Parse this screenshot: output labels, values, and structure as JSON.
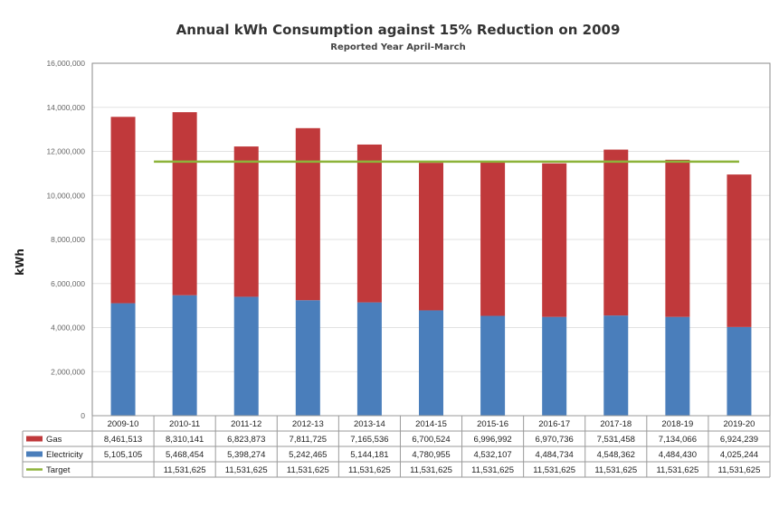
{
  "chart_data": {
    "type": "bar",
    "stacked": true,
    "title": "Annual kWh Consumption against 15% Reduction on 2009",
    "subtitle": "Reported Year April-March",
    "ylabel": "kWh",
    "xlabel": "",
    "ylim": [
      0,
      16000000
    ],
    "yticks": [
      0,
      2000000,
      4000000,
      6000000,
      8000000,
      10000000,
      12000000,
      14000000,
      16000000
    ],
    "ytick_labels": [
      "0",
      "2,000,000",
      "4,000,000",
      "6,000,000",
      "8,000,000",
      "10,000,000",
      "12,000,000",
      "14,000,000",
      "16,000,000"
    ],
    "grid": true,
    "legend": "data-table",
    "categories": [
      "2009-10",
      "2010-11",
      "2011-12",
      "2012-13",
      "2013-14",
      "2014-15",
      "2015-16",
      "2016-17",
      "2017-18",
      "2018-19",
      "2019-20"
    ],
    "series": [
      {
        "name": "Gas",
        "kind": "bar",
        "color": "#c0393b",
        "values": [
          8461513,
          8310141,
          6823873,
          7811725,
          7165536,
          6700524,
          6996992,
          6970736,
          7531458,
          7134066,
          6924239
        ],
        "labels": [
          "8,461,513",
          "8,310,141",
          "6,823,873",
          "7,811,725",
          "7,165,536",
          "6,700,524",
          "6,996,992",
          "6,970,736",
          "7,531,458",
          "7,134,066",
          "6,924,239"
        ]
      },
      {
        "name": "Electricity",
        "kind": "bar",
        "color": "#4a7ebb",
        "values": [
          5105105,
          5468454,
          5398274,
          5242465,
          5144181,
          4780955,
          4532107,
          4484734,
          4548362,
          4484430,
          4025244
        ],
        "labels": [
          "5,105,105",
          "5,468,454",
          "5,398,274",
          "5,242,465",
          "5,144,181",
          "4,780,955",
          "4,532,107",
          "4,484,734",
          "4,548,362",
          "4,484,430",
          "4,025,244"
        ]
      },
      {
        "name": "Target",
        "kind": "line",
        "color": "#8db33a",
        "values": [
          null,
          11531625,
          11531625,
          11531625,
          11531625,
          11531625,
          11531625,
          11531625,
          11531625,
          11531625,
          11531625
        ],
        "labels": [
          "",
          "11,531,625",
          "11,531,625",
          "11,531,625",
          "11,531,625",
          "11,531,625",
          "11,531,625",
          "11,531,625",
          "11,531,625",
          "11,531,625",
          "11,531,625"
        ]
      }
    ]
  }
}
